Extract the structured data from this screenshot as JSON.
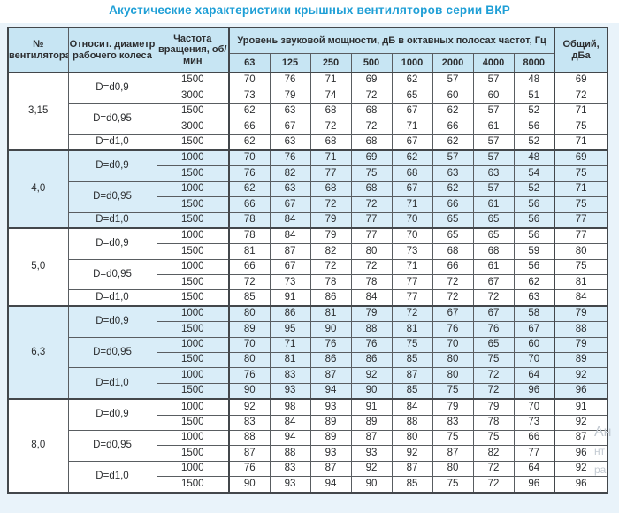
{
  "title": "Акустические характеристики крышных вентиляторов серии ВКР",
  "colors": {
    "accent_title": "#1f9fd6",
    "header_bg": "#c7e5f3",
    "shaded_group_bg": "#d9edf8",
    "border": "#43474b"
  },
  "table": {
    "headers": {
      "fan_number": "№ вентилятора",
      "diameter": "Относит. диаметр рабочего колеса",
      "speed": "Частота вращения, об/мин",
      "spl_group": "Уровень звуковой мощности, дБ в октавных полосах частот, Гц",
      "octave_bands": [
        "63",
        "125",
        "250",
        "500",
        "1000",
        "2000",
        "4000",
        "8000"
      ],
      "total": "Общий, дБа"
    },
    "groups": [
      {
        "fan": "3,15",
        "shaded": false,
        "subgroups": [
          {
            "diameter": "D=d0,9",
            "rows": [
              {
                "speed": "1500",
                "levels": [
                  70,
                  76,
                  71,
                  69,
                  62,
                  57,
                  57,
                  48
                ],
                "total": 69
              },
              {
                "speed": "3000",
                "levels": [
                  73,
                  79,
                  74,
                  72,
                  65,
                  60,
                  60,
                  51
                ],
                "total": 72
              }
            ]
          },
          {
            "diameter": "D=d0,95",
            "rows": [
              {
                "speed": "1500",
                "levels": [
                  62,
                  63,
                  68,
                  68,
                  67,
                  62,
                  57,
                  52
                ],
                "total": 71
              },
              {
                "speed": "3000",
                "levels": [
                  66,
                  67,
                  72,
                  72,
                  71,
                  66,
                  61,
                  56
                ],
                "total": 75
              }
            ]
          },
          {
            "diameter": "D=d1,0",
            "rows": [
              {
                "speed": "1500",
                "levels": [
                  62,
                  63,
                  68,
                  68,
                  67,
                  62,
                  57,
                  52
                ],
                "total": 71
              }
            ]
          }
        ]
      },
      {
        "fan": "4,0",
        "shaded": true,
        "subgroups": [
          {
            "diameter": "D=d0,9",
            "rows": [
              {
                "speed": "1000",
                "levels": [
                  70,
                  76,
                  71,
                  69,
                  62,
                  57,
                  57,
                  48
                ],
                "total": 69
              },
              {
                "speed": "1500",
                "levels": [
                  76,
                  82,
                  77,
                  75,
                  68,
                  63,
                  63,
                  54
                ],
                "total": 75
              }
            ]
          },
          {
            "diameter": "D=d0,95",
            "rows": [
              {
                "speed": "1000",
                "levels": [
                  62,
                  63,
                  68,
                  68,
                  67,
                  62,
                  57,
                  52
                ],
                "total": 71
              },
              {
                "speed": "1500",
                "levels": [
                  66,
                  67,
                  72,
                  72,
                  71,
                  66,
                  61,
                  56
                ],
                "total": 75
              }
            ]
          },
          {
            "diameter": "D=d1,0",
            "rows": [
              {
                "speed": "1500",
                "levels": [
                  78,
                  84,
                  79,
                  77,
                  70,
                  65,
                  65,
                  56
                ],
                "total": 77
              }
            ]
          }
        ]
      },
      {
        "fan": "5,0",
        "shaded": false,
        "subgroups": [
          {
            "diameter": "D=d0,9",
            "rows": [
              {
                "speed": "1000",
                "levels": [
                  78,
                  84,
                  79,
                  77,
                  70,
                  65,
                  65,
                  56
                ],
                "total": 77
              },
              {
                "speed": "1500",
                "levels": [
                  81,
                  87,
                  82,
                  80,
                  73,
                  68,
                  68,
                  59
                ],
                "total": 80
              }
            ]
          },
          {
            "diameter": "D=d0,95",
            "rows": [
              {
                "speed": "1000",
                "levels": [
                  66,
                  67,
                  72,
                  72,
                  71,
                  66,
                  61,
                  56
                ],
                "total": 75
              },
              {
                "speed": "1500",
                "levels": [
                  72,
                  73,
                  78,
                  78,
                  77,
                  72,
                  67,
                  62
                ],
                "total": 81
              }
            ]
          },
          {
            "diameter": "D=d1,0",
            "rows": [
              {
                "speed": "1500",
                "levels": [
                  85,
                  91,
                  86,
                  84,
                  77,
                  72,
                  72,
                  63
                ],
                "total": 84
              }
            ]
          }
        ]
      },
      {
        "fan": "6,3",
        "shaded": true,
        "subgroups": [
          {
            "diameter": "D=d0,9",
            "rows": [
              {
                "speed": "1000",
                "levels": [
                  80,
                  86,
                  81,
                  79,
                  72,
                  67,
                  67,
                  58
                ],
                "total": 79
              },
              {
                "speed": "1500",
                "levels": [
                  89,
                  95,
                  90,
                  88,
                  81,
                  76,
                  76,
                  67
                ],
                "total": 88
              }
            ]
          },
          {
            "diameter": "D=d0,95",
            "rows": [
              {
                "speed": "1000",
                "levels": [
                  70,
                  71,
                  76,
                  76,
                  75,
                  70,
                  65,
                  60
                ],
                "total": 79
              },
              {
                "speed": "1500",
                "levels": [
                  80,
                  81,
                  86,
                  86,
                  85,
                  80,
                  75,
                  70
                ],
                "total": 89
              }
            ]
          },
          {
            "diameter": "D=d1,0",
            "rows": [
              {
                "speed": "1000",
                "levels": [
                  76,
                  83,
                  87,
                  92,
                  87,
                  80,
                  72,
                  64
                ],
                "total": 92
              },
              {
                "speed": "1500",
                "levels": [
                  90,
                  93,
                  94,
                  90,
                  85,
                  75,
                  72,
                  96
                ],
                "total": 96
              }
            ]
          }
        ]
      },
      {
        "fan": "8,0",
        "shaded": false,
        "subgroups": [
          {
            "diameter": "D=d0,9",
            "rows": [
              {
                "speed": "1000",
                "levels": [
                  92,
                  98,
                  93,
                  91,
                  84,
                  79,
                  79,
                  70
                ],
                "total": 91
              },
              {
                "speed": "1500",
                "levels": [
                  83,
                  84,
                  89,
                  89,
                  88,
                  83,
                  78,
                  73
                ],
                "total": 92
              }
            ]
          },
          {
            "diameter": "D=d0,95",
            "rows": [
              {
                "speed": "1000",
                "levels": [
                  88,
                  94,
                  89,
                  87,
                  80,
                  75,
                  75,
                  66
                ],
                "total": 87
              },
              {
                "speed": "1500",
                "levels": [
                  87,
                  88,
                  93,
                  93,
                  92,
                  87,
                  82,
                  77
                ],
                "total": 96
              }
            ]
          },
          {
            "diameter": "D=d1,0",
            "rows": [
              {
                "speed": "1000",
                "levels": [
                  76,
                  83,
                  87,
                  92,
                  87,
                  80,
                  72,
                  64
                ],
                "total": 92
              },
              {
                "speed": "1500",
                "levels": [
                  90,
                  93,
                  94,
                  90,
                  85,
                  75,
                  72,
                  96
                ],
                "total": 96
              }
            ]
          }
        ]
      }
    ]
  },
  "watermark": {
    "lines": [
      "Ан",
      "нт",
      "ра"
    ]
  }
}
